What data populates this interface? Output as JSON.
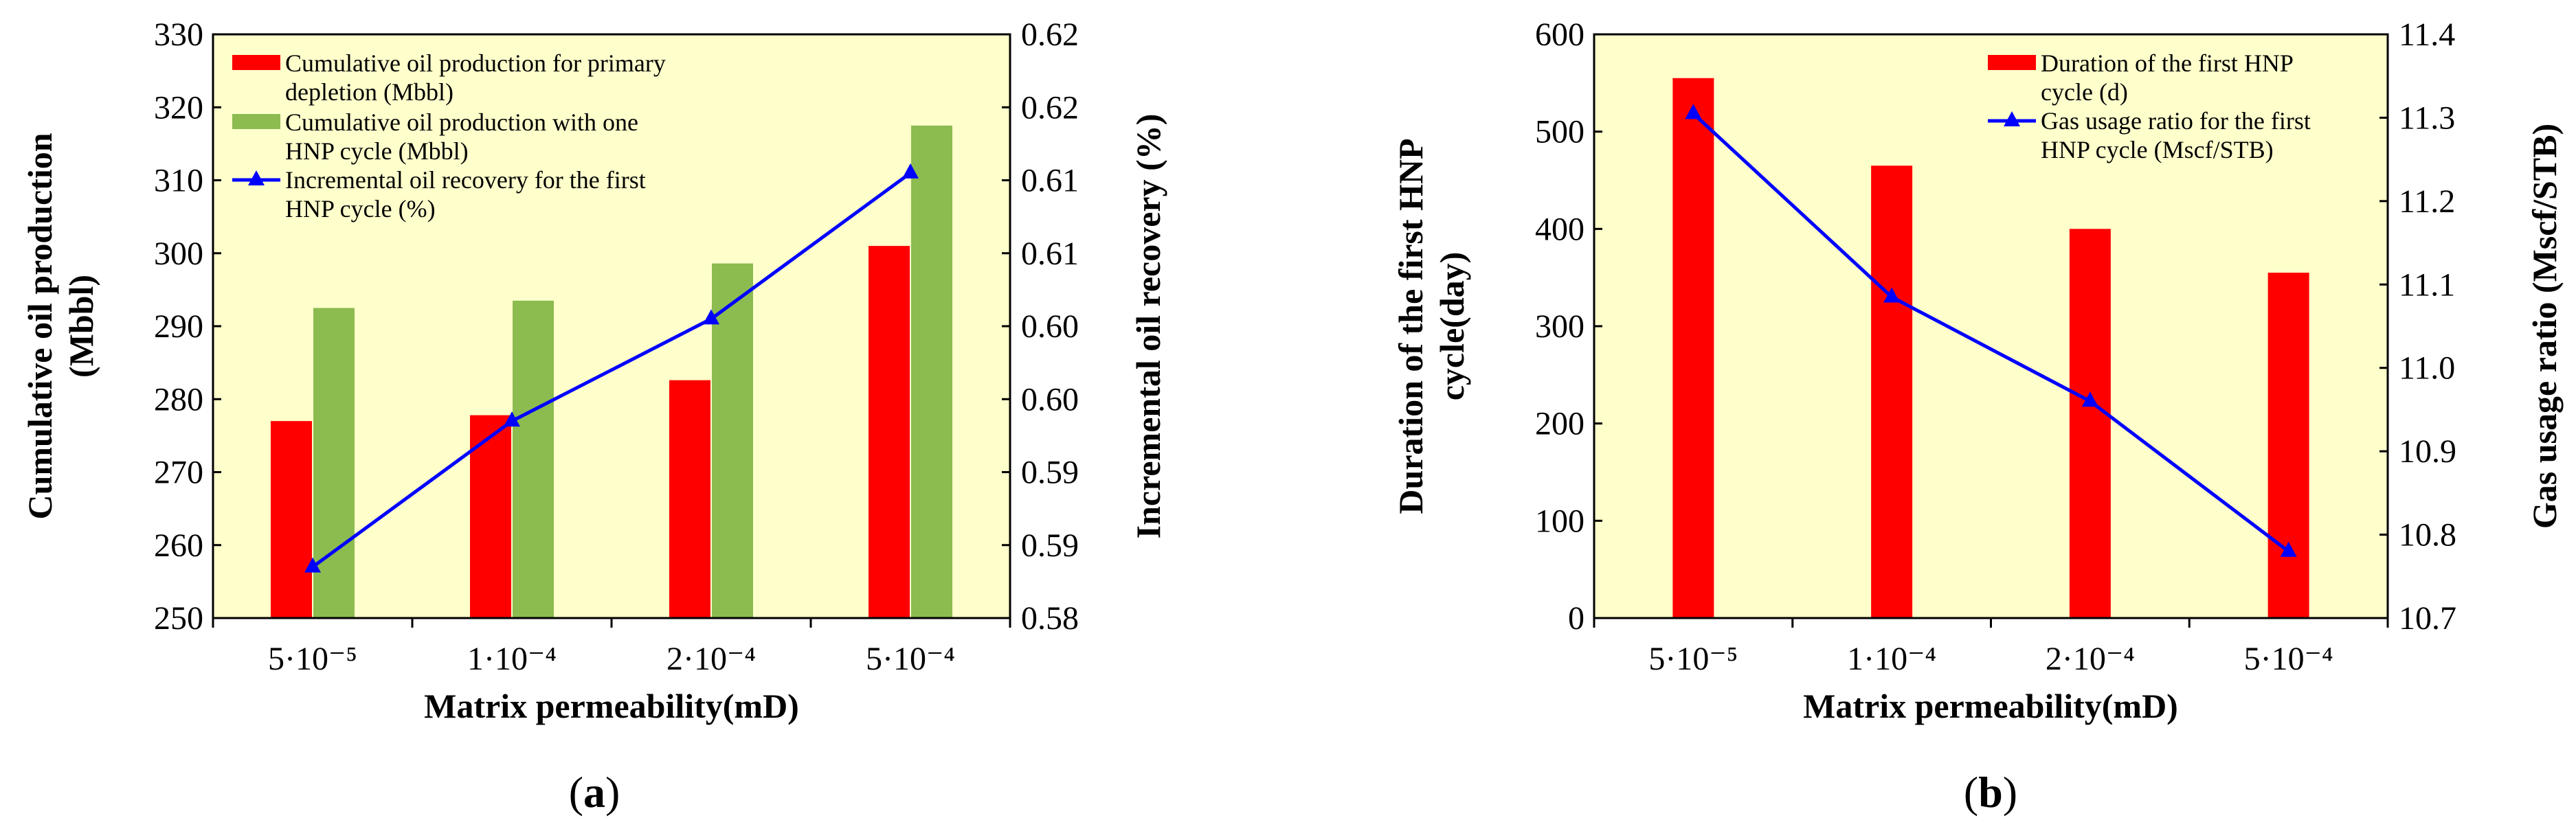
{
  "chart_data": [
    {
      "id": "a",
      "type": "bar",
      "panel_label": "a",
      "categories": [
        "5·10⁻⁵",
        "1·10⁻⁴",
        "2·10⁻⁴",
        "5·10⁻⁴"
      ],
      "xlabel": "Matrix permeability(mD)",
      "ylabel_lines": [
        "Cumulative oil production",
        "(Mbbl)"
      ],
      "y2label": "Incremental oil recovery (%)",
      "ylim": [
        250,
        330
      ],
      "yticks": [
        250,
        260,
        270,
        280,
        290,
        300,
        310,
        320,
        330
      ],
      "y2lim": [
        0.58,
        0.62
      ],
      "y2ticks": [
        0.58,
        0.585,
        0.59,
        0.595,
        0.6,
        0.605,
        0.61,
        0.615,
        0.62
      ],
      "y2tick_labels": [
        "0.58",
        "0.59",
        "0.59",
        "0.60",
        "0.60",
        "0.61",
        "0.61",
        "0.62",
        "0.62"
      ],
      "series": [
        {
          "name": "Cumulative oil production for primary depletion (Mbbl)",
          "legend_lines": [
            "Cumulative oil production for primary",
            "depletion (Mbbl)"
          ],
          "kind": "bar",
          "axis": "left",
          "color": "#ff0000",
          "values": [
            277,
            277.8,
            282.6,
            301
          ]
        },
        {
          "name": "Cumulative oil production with one HNP cycle (Mbbl)",
          "legend_lines": [
            "Cumulative oil production with one",
            "HNP cycle (Mbbl)"
          ],
          "kind": "bar",
          "axis": "left",
          "color": "#8cbb50",
          "values": [
            292.5,
            293.5,
            298.6,
            317.5
          ]
        },
        {
          "name": "Incremental oil recovery for the first HNP cycle (%)",
          "legend_lines": [
            "Incremental oil recovery for the first",
            "HNP cycle (%)"
          ],
          "kind": "line",
          "axis": "right",
          "color": "#0000ff",
          "values": [
            0.5835,
            0.5935,
            0.6005,
            0.6105
          ]
        }
      ]
    },
    {
      "id": "b",
      "type": "bar",
      "panel_label": "b",
      "categories": [
        "5·10⁻⁵",
        "1·10⁻⁴",
        "2·10⁻⁴",
        "5·10⁻⁴"
      ],
      "xlabel": "Matrix permeability(mD)",
      "ylabel_lines": [
        "Duration of the first HNP",
        "cycle(day)"
      ],
      "y2label": "Gas usage ratio (Mscf/STB)",
      "ylim": [
        0,
        600
      ],
      "yticks": [
        0,
        100,
        200,
        300,
        400,
        500,
        600
      ],
      "y2lim": [
        10.7,
        11.4
      ],
      "y2ticks": [
        10.7,
        10.8,
        10.9,
        11.0,
        11.1,
        11.2,
        11.3,
        11.4
      ],
      "y2tick_labels": [
        "10.7",
        "10.8",
        "10.9",
        "11.0",
        "11.1",
        "11.2",
        "11.3",
        "11.4"
      ],
      "series": [
        {
          "name": "Duration of the first HNP cycle (d)",
          "legend_lines": [
            "Duration of the first HNP",
            "cycle (d)"
          ],
          "kind": "bar",
          "axis": "left",
          "color": "#ff0000",
          "values": [
            555,
            465,
            400,
            355
          ]
        },
        {
          "name": "Gas usage ratio for the first HNP cycle (Mscf/STB)",
          "legend_lines": [
            "Gas usage ratio for the first",
            "HNP cycle (Mscf/STB)"
          ],
          "kind": "line",
          "axis": "right",
          "color": "#0000ff",
          "values": [
            11.305,
            11.085,
            10.96,
            10.78
          ]
        }
      ]
    }
  ],
  "colors": {
    "plot_background": "#ffffcc",
    "axis": "#000000"
  }
}
